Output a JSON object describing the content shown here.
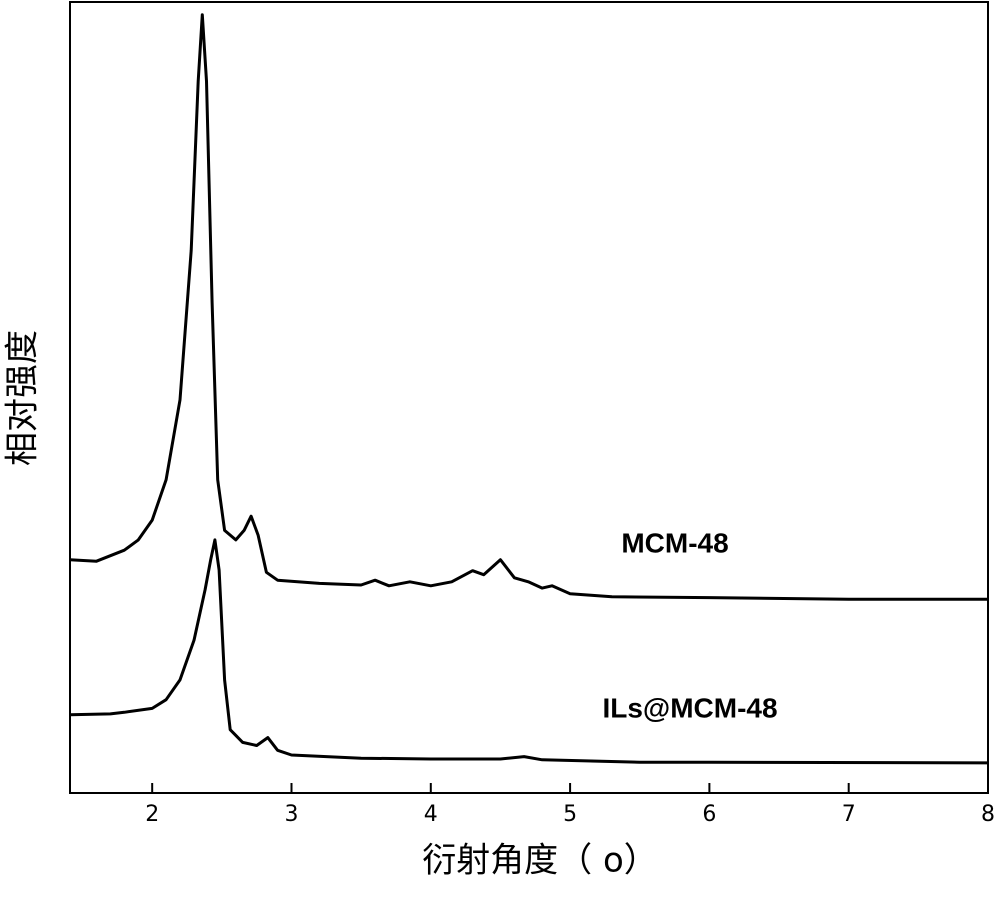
{
  "chart_data": {
    "type": "line",
    "xlabel": "衍射角度（ o）",
    "ylabel": "相对强度",
    "xlim": [
      1.41,
      8
    ],
    "ylim": [
      0,
      100
    ],
    "xticks": [
      2,
      3,
      4,
      5,
      6,
      7,
      8
    ],
    "grid": false,
    "series": [
      {
        "name": "MCM-48",
        "color": "#000000",
        "x": [
          1.41,
          1.6,
          1.8,
          1.9,
          2.0,
          2.1,
          2.2,
          2.28,
          2.33,
          2.36,
          2.39,
          2.43,
          2.47,
          2.52,
          2.6,
          2.66,
          2.71,
          2.76,
          2.82,
          2.9,
          3.2,
          3.5,
          3.6,
          3.7,
          3.85,
          4.0,
          4.15,
          4.3,
          4.38,
          4.5,
          4.6,
          4.7,
          4.8,
          4.87,
          5.0,
          5.3,
          6.0,
          7.0,
          8.0
        ],
        "values": [
          29.5,
          29.3,
          30.7,
          32,
          34.5,
          39.6,
          49.7,
          68.6,
          90,
          98.4,
          90,
          62,
          39.6,
          33.2,
          32,
          33.2,
          35,
          32.6,
          27.9,
          26.9,
          26.5,
          26.3,
          26.9,
          26.2,
          26.7,
          26.2,
          26.7,
          28.1,
          27.6,
          29.5,
          27.2,
          26.7,
          25.9,
          26.2,
          25.2,
          24.8,
          24.7,
          24.5,
          24.5
        ]
      },
      {
        "name": "ILs@MCM-48",
        "color": "#000000",
        "x": [
          1.41,
          1.7,
          1.8,
          2.0,
          2.1,
          2.2,
          2.3,
          2.38,
          2.42,
          2.45,
          2.48,
          2.52,
          2.56,
          2.65,
          2.75,
          2.83,
          2.9,
          3.0,
          3.5,
          4.0,
          4.5,
          4.67,
          4.8,
          5.5,
          6.0,
          8.0
        ],
        "values": [
          9.9,
          10,
          10.2,
          10.7,
          11.8,
          14.3,
          19.3,
          25.7,
          29.5,
          32,
          28.2,
          14.3,
          8,
          6.4,
          6,
          7,
          5.4,
          4.8,
          4.4,
          4.3,
          4.3,
          4.6,
          4.2,
          3.9,
          3.9,
          3.8
        ]
      }
    ]
  }
}
